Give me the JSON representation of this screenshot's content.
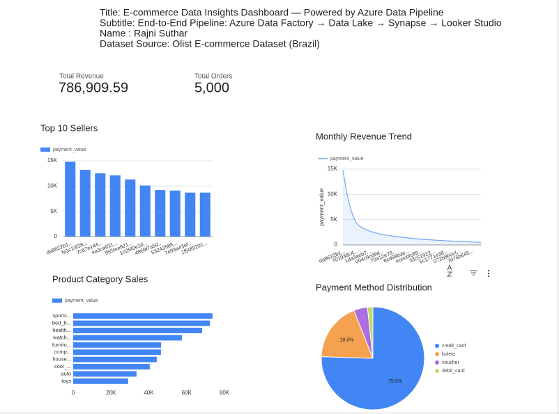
{
  "header": {
    "lines": [
      "Title: E-commerce Data Insights Dashboard — Powered by Azure Data Pipeline",
      "Subtitle: End-to-End Pipeline: Azure Data Factory → Data Lake → Synapse → Looker Studio",
      "Name : Rajni Suthar",
      "Dataset Source: Olist E-commerce Dataset (Brazil)"
    ]
  },
  "kpis": [
    {
      "label": "Total Revenue",
      "value": "786,909.59"
    },
    {
      "label": "Total Orders",
      "value": "5,000"
    }
  ],
  "chart_data": [
    {
      "type": "bar",
      "title": "Top 10 Sellers",
      "categories": [
        "da8622b1...",
        "fa1c13f26...",
        "7c67e144...",
        "4a3ca931...",
        "955fee921...",
        "1025f0e2d...",
        "4869f7a5d...",
        "53243585...",
        "7e93a43ef...",
        "1f50f9201..."
      ],
      "series": [
        {
          "name": "payment_value",
          "color": "#4285f4",
          "values": [
            14800,
            13200,
            12500,
            12100,
            11300,
            10100,
            9200,
            9100,
            8700,
            8700
          ]
        }
      ],
      "ylim": [
        0,
        15000
      ],
      "yticks": [
        0,
        {
          "value": 5000,
          "label": "5K"
        },
        {
          "value": 10000,
          "label": "10K"
        },
        {
          "value": 15000,
          "label": "15K"
        }
      ],
      "grid": true
    },
    {
      "type": "line",
      "title": "Monthly Revenue Trend",
      "ylabel": "payment_value",
      "categories": [
        "da8622b1...",
        null,
        null,
        null,
        "701938c4...",
        null,
        null,
        null,
        "1da3aeb7...",
        null,
        null,
        null,
        "004c9cd9d...",
        null,
        null,
        null,
        "70a12e78...",
        null,
        null,
        null,
        "6cd68b3e...",
        null,
        null,
        null,
        "ececbfcff9...",
        null,
        null,
        null,
        "33c51922...",
        null,
        null,
        null,
        "6c1771e38...",
        null,
        null,
        null,
        "072b8b0cf...",
        null,
        null,
        null,
        "7d76b645...",
        null,
        null,
        null
      ],
      "series": [
        {
          "name": "payment_value",
          "color": "#6fa8f5",
          "values": [
            14800,
            11000,
            8000,
            6000,
            4500,
            3800,
            3400,
            3100,
            2800,
            2600,
            2400,
            2250,
            2100,
            2000,
            1900,
            1800,
            1700,
            1620,
            1550,
            1480,
            1400,
            1340,
            1280,
            1220,
            1170,
            1120,
            1070,
            1020,
            980,
            940,
            900,
            860,
            820,
            790,
            760,
            730,
            700,
            670,
            640,
            610,
            580,
            560,
            540,
            520
          ]
        }
      ],
      "ylim": [
        0,
        15000
      ],
      "yticks": [
        0,
        {
          "value": 5000,
          "label": "5K"
        },
        {
          "value": 10000,
          "label": "10K"
        },
        {
          "value": 15000,
          "label": "15K"
        }
      ],
      "grid": true
    },
    {
      "type": "bar",
      "orientation": "horizontal",
      "title": "Product Category Sales",
      "categories": [
        "sports...",
        "bed_b...",
        "health...",
        "watch...",
        "furnitu...",
        "comp...",
        "house...",
        "cool_...",
        "auto",
        "toys"
      ],
      "series": [
        {
          "name": "payment_value",
          "color": "#4285f4",
          "values": [
            73700,
            72300,
            68200,
            57500,
            46500,
            46400,
            44200,
            40500,
            33500,
            29100
          ]
        }
      ],
      "xlim": [
        0,
        80000
      ],
      "xticks": [
        0,
        {
          "value": 20000,
          "label": "20K"
        },
        {
          "value": 40000,
          "label": "40K"
        },
        {
          "value": 60000,
          "label": "60K"
        },
        {
          "value": 80000,
          "label": "80K"
        }
      ],
      "grid": false
    },
    {
      "type": "pie",
      "title": "Payment Method Distribution",
      "categories": [
        "credit_card",
        "boleto",
        "voucher",
        "debit_card"
      ],
      "values": [
        75.5,
        18.5,
        4.3,
        1.7
      ],
      "value_labels": [
        "75.5%",
        "18.5%",
        null,
        null
      ],
      "colors": [
        "#4285f4",
        "#f4a250",
        "#ab6fe0",
        "#c5d86d"
      ],
      "legend": "right"
    }
  ]
}
